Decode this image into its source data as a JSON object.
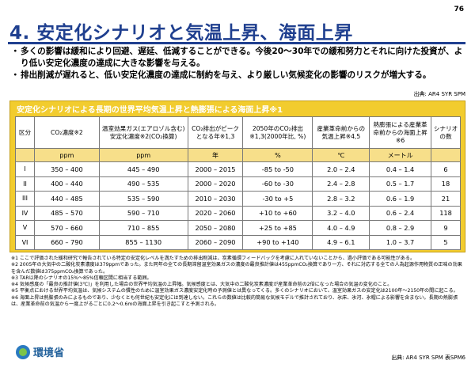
{
  "page_number": "76",
  "title": "4. 安定化シナリオと気温上昇、海面上昇",
  "bullets": [
    "多くの影響は緩和により回避、遅延、低減することができる。今後20～30年での緩和努力とそれに向けた投資が、より低い安定化濃度の達成に大きな影響を与える。",
    "排出削減が遅れると、低い安定化濃度の達成に制約を与え、より厳しい気候変化の影響のリスクが増大する。"
  ],
  "source_top": "出典: AR4 SYR SPM",
  "table_title": "安定化シナリオによる長期の世界平均気温上昇と熱膨張による海面上昇※1",
  "headers": [
    "区分",
    "CO₂濃度※2",
    "温室効果ガス(エアロゾル含む)安定化濃度※2(CO₂換算)",
    "CO₂排出がピークとなる年※1,3",
    "2050年のCO₂排出※1,3(2000年比, %)",
    "産業革命前からの気温上昇※4,5",
    "熱膨張による産業革命前からの海面上昇※6",
    "シナリオの数"
  ],
  "units": [
    "",
    "ppm",
    "ppm",
    "年",
    "%",
    "℃",
    "メートル",
    ""
  ],
  "rows": [
    [
      "I",
      "350 – 400",
      "445 – 490",
      "2000 – 2015",
      "-85 to -50",
      "2.0 – 2.4",
      "0.4 – 1.4",
      "6"
    ],
    [
      "II",
      "400 – 440",
      "490 – 535",
      "2000 – 2020",
      "-60 to -30",
      "2.4 – 2.8",
      "0.5 – 1.7",
      "18"
    ],
    [
      "III",
      "440 – 485",
      "535 – 590",
      "2010 – 2030",
      "-30 to +5",
      "2.8 – 3.2",
      "0.6 – 1.9",
      "21"
    ],
    [
      "IV",
      "485 – 570",
      "590 – 710",
      "2020 – 2060",
      "+10 to +60",
      "3.2 – 4.0",
      "0.6 – 2.4",
      "118"
    ],
    [
      "V",
      "570 – 660",
      "710 – 855",
      "2050 – 2080",
      "+25 to +85",
      "4.0 – 4.9",
      "0.8 – 2.9",
      "9"
    ],
    [
      "VI",
      "660 – 790",
      "855 – 1130",
      "2060 – 2090",
      "+90 to +140",
      "4.9 – 6.1",
      "1.0 – 3.7",
      "5"
    ]
  ],
  "notes": [
    "※1 ここで評価された緩和研究で報告されている特定の安定化レベルを満たすための排出削減は、炭素循環フィードバックを考慮に入れていないことから、過小評価である可能性がある。",
    "※2 2005年の大気中の二酸化炭素濃度は379ppmであった。また同年の全ての長期滞留温室効果ガスの濃度の最良推計値は455ppmCO₂換算であり一方、それに対応する全ての人為起源作用物質の正味の効果を含んだ数値は375ppmCO₂換算であった。",
    "※3 TAR以降のシナリオの15%～85%信頼区間に相当する範囲。",
    "※4 気候感度の「最良の推計値(3℃)」を利用した場合の世界平均気温の上昇幅。気候感度とは、大気中の二酸化炭素濃度が産業革命前の2倍になった場合の気温の変化のこと。",
    "※5 平衡点における世界平均気温は、気候システムの慣性のために温室効果ガス濃度安定化時の予測値とは異なってくる。多くのシナリオにおいて、温室効果ガスの安定化は2100年～2150年の間に起こる。",
    "※6 海面上昇は熱膨張のみによるものであり、少なくとも何世紀も安定化には到達しない。これらの数値は比較的簡易な気候モデルで推計されており、氷床、氷河、氷帽による影響を含まない。長期の熱膨張は、産業革命前の気温から一度上がるごとに0.2～0.6mの海面上昇を引き起こすと予測される。"
  ],
  "logo_text": "環境省",
  "source_bottom": "出典: AR4 SYR SPM 表SPM6"
}
